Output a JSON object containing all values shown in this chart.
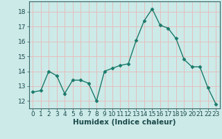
{
  "x": [
    0,
    1,
    2,
    3,
    4,
    5,
    6,
    7,
    8,
    9,
    10,
    11,
    12,
    13,
    14,
    15,
    16,
    17,
    18,
    19,
    20,
    21,
    22,
    23
  ],
  "y": [
    12.6,
    12.7,
    14.0,
    13.7,
    12.5,
    13.4,
    13.4,
    13.2,
    12.0,
    14.0,
    14.2,
    14.4,
    14.5,
    16.1,
    17.4,
    18.2,
    17.1,
    16.9,
    16.2,
    14.8,
    14.3,
    14.3,
    12.9,
    11.8
  ],
  "line_color": "#1a7a6a",
  "marker": "D",
  "marker_size": 2.5,
  "bg_color": "#cceae8",
  "grid_color": "#e8b8b8",
  "xlabel": "Humidex (Indice chaleur)",
  "ylim": [
    11.5,
    18.7
  ],
  "xlim": [
    -0.5,
    23.5
  ],
  "yticks": [
    12,
    13,
    14,
    15,
    16,
    17,
    18
  ],
  "xticks": [
    0,
    1,
    2,
    3,
    4,
    5,
    6,
    7,
    8,
    9,
    10,
    11,
    12,
    13,
    14,
    15,
    16,
    17,
    18,
    19,
    20,
    21,
    22,
    23
  ],
  "tick_label_fontsize": 6.5,
  "xlabel_fontsize": 7.5
}
